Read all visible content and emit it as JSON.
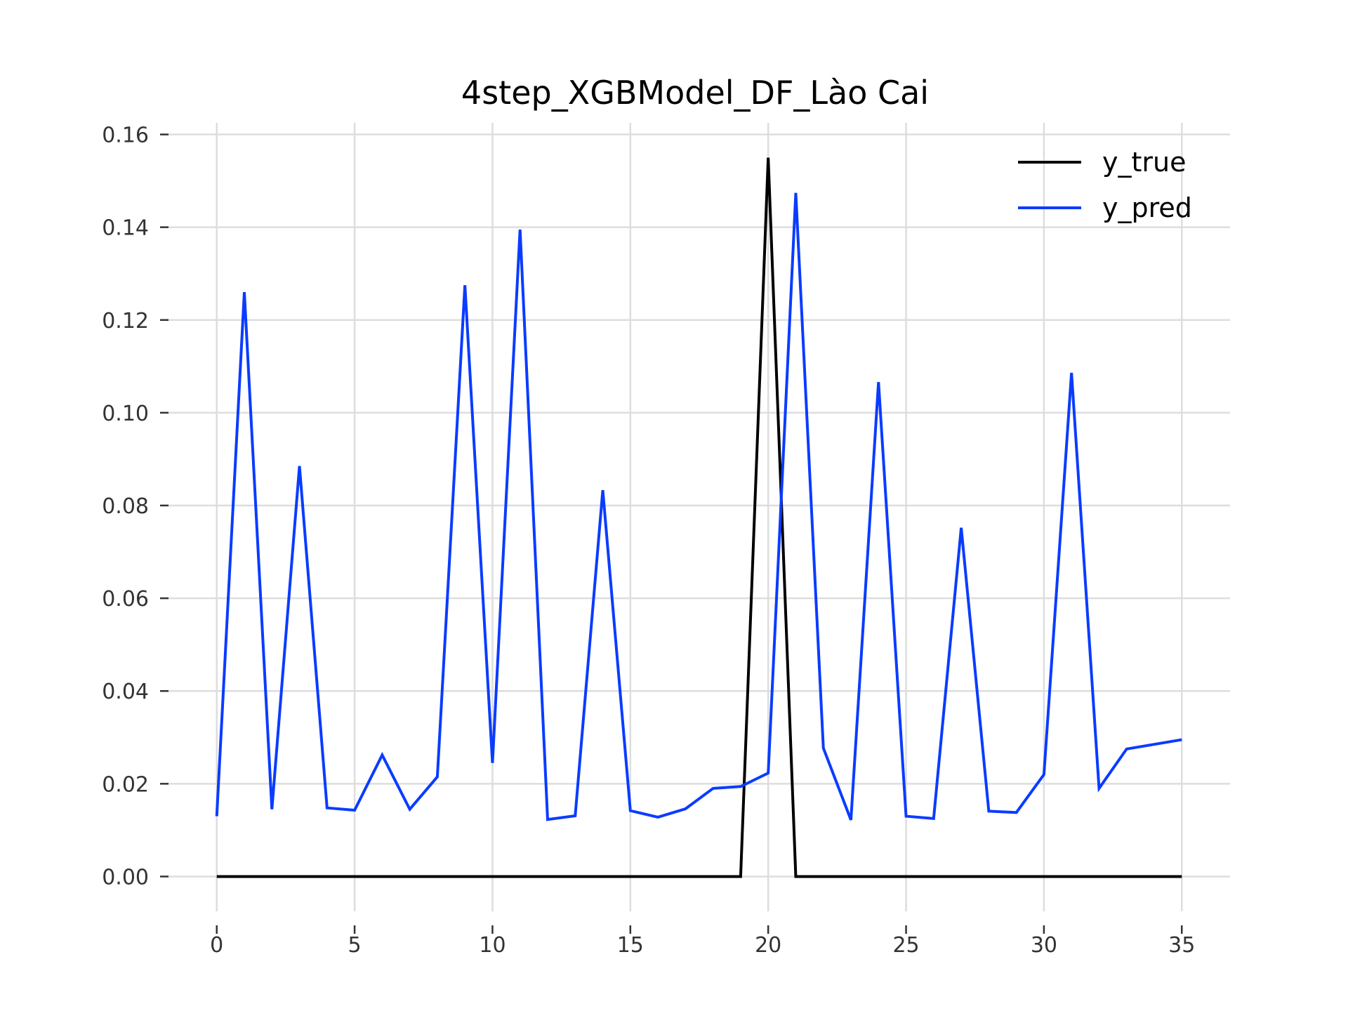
{
  "chart_data": {
    "type": "line",
    "title": "4step_XGBModel_DF_Lào Cai",
    "xlabel": "",
    "ylabel": "",
    "xlim": [
      -1.75,
      36.75
    ],
    "ylim": [
      -0.0075,
      0.1625
    ],
    "x_ticks": [
      0,
      5,
      10,
      15,
      20,
      25,
      30,
      35
    ],
    "x_tick_labels": [
      "0",
      "5",
      "10",
      "15",
      "20",
      "25",
      "30",
      "35"
    ],
    "y_ticks": [
      0.0,
      0.02,
      0.04,
      0.06,
      0.08,
      0.1,
      0.12,
      0.14,
      0.16
    ],
    "y_tick_labels": [
      "0.00",
      "0.02",
      "0.04",
      "0.06",
      "0.08",
      "0.10",
      "0.12",
      "0.14",
      "0.16"
    ],
    "grid": true,
    "legend_position": "top-right",
    "x": [
      0,
      1,
      2,
      3,
      4,
      5,
      6,
      7,
      8,
      9,
      10,
      11,
      12,
      13,
      14,
      15,
      16,
      17,
      18,
      19,
      20,
      21,
      22,
      23,
      24,
      25,
      26,
      27,
      28,
      29,
      30,
      31,
      32,
      33,
      34,
      35
    ],
    "series": [
      {
        "name": "y_true",
        "color": "#000000",
        "values": [
          0,
          0,
          0,
          0,
          0,
          0,
          0,
          0,
          0,
          0,
          0,
          0,
          0,
          0,
          0,
          0,
          0,
          0,
          0,
          0,
          0.155,
          0,
          0,
          0,
          0,
          0,
          0,
          0,
          0,
          0,
          0,
          0,
          0,
          0,
          0,
          0
        ]
      },
      {
        "name": "y_pred",
        "color": "#0a3cff",
        "values": [
          0.013,
          0.126,
          0.0145,
          0.0885,
          0.0148,
          0.0143,
          0.0262,
          0.0145,
          0.0215,
          0.1275,
          0.0245,
          0.1395,
          0.0123,
          0.0131,
          0.0833,
          0.0142,
          0.0128,
          0.0146,
          0.019,
          0.0194,
          0.0223,
          0.1474,
          0.0277,
          0.0122,
          0.1066,
          0.013,
          0.0125,
          0.0752,
          0.0141,
          0.0138,
          0.022,
          0.1086,
          0.019,
          0.0275,
          0.0285,
          0.0295
        ]
      }
    ]
  }
}
